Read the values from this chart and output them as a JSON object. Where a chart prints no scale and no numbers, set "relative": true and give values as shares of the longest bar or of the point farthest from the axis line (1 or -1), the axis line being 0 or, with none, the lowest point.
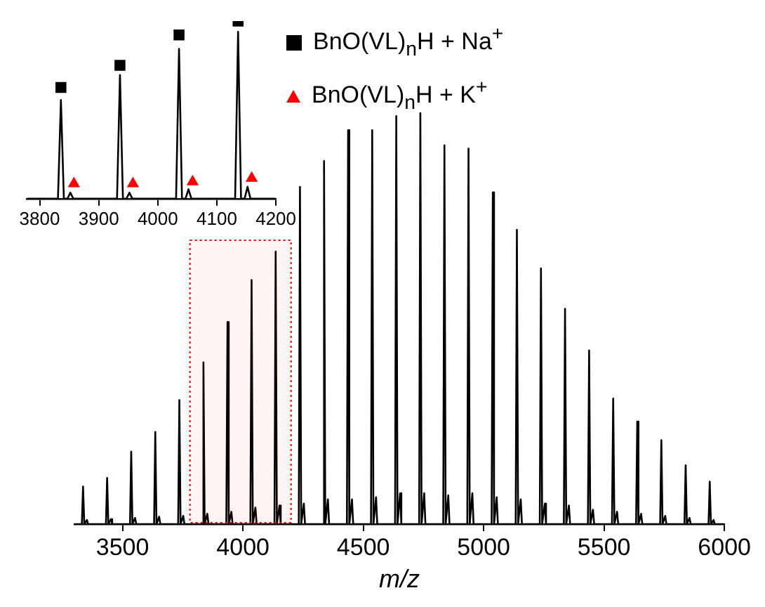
{
  "chart_data": [
    {
      "type": "line",
      "xlabel": "m/z",
      "relative": true,
      "xlim": [
        3300,
        6000
      ],
      "xticks": [
        3500,
        4000,
        4500,
        5000,
        5500,
        6000
      ],
      "marker": "none",
      "grid": false,
      "legend": false,
      "bands": [
        {
          "axis": "x",
          "from": 3780,
          "to": 4200,
          "color": "#ff0000"
        }
      ],
      "series": [
        {
          "color": "#000000",
          "x": [
            3305,
            3331,
            3336,
            3341,
            3352,
            3357,
            3431,
            3436,
            3441,
            3452,
            3457,
            3531,
            3536,
            3541,
            3552,
            3557,
            3631,
            3636,
            3641,
            3652,
            3657,
            3731,
            3736,
            3741,
            3752,
            3757,
            3831,
            3836,
            3841,
            3852,
            3857,
            3931,
            3936,
            3941,
            3952,
            3957,
            4031,
            4036,
            4041,
            4052,
            4057,
            4131,
            4136,
            4141,
            4152,
            4157,
            4232,
            4237,
            4242,
            4253,
            4258,
            4332,
            4337,
            4342,
            4353,
            4358,
            4432,
            4437,
            4442,
            4453,
            4458,
            4532,
            4537,
            4542,
            4553,
            4558,
            4632,
            4637,
            4642,
            4653,
            4658,
            4732,
            4737,
            4742,
            4753,
            4758,
            4832,
            4837,
            4842,
            4853,
            4858,
            4932,
            4937,
            4942,
            4953,
            4958,
            5033,
            5038,
            5043,
            5054,
            5059,
            5133,
            5138,
            5143,
            5154,
            5159,
            5233,
            5238,
            5243,
            5254,
            5259,
            5333,
            5338,
            5343,
            5354,
            5359,
            5433,
            5438,
            5443,
            5454,
            5459,
            5533,
            5538,
            5543,
            5554,
            5559,
            5633,
            5638,
            5643,
            5654,
            5659,
            5733,
            5738,
            5743,
            5754,
            5759,
            5834,
            5839,
            5844,
            5855,
            5860,
            5934,
            5939,
            5944,
            5955,
            5960,
            5995
          ],
          "values": [
            0,
            0,
            0.091,
            0,
            0.01,
            0,
            0,
            0.112,
            0,
            0.012,
            0,
            0,
            0.176,
            0,
            0.015,
            0,
            0,
            0.224,
            0,
            0.018,
            0,
            0,
            0.301,
            0,
            0.02,
            0,
            0,
            0.393,
            0,
            0.025,
            0,
            0,
            0.491,
            0,
            0.03,
            0,
            0,
            0.593,
            0,
            0.04,
            0,
            0,
            0.662,
            0,
            0.045,
            0,
            0,
            0.819,
            0,
            0.05,
            0,
            0,
            0.882,
            0,
            0.06,
            0,
            0,
            0.957,
            0,
            0.06,
            0,
            0,
            0.957,
            0,
            0.065,
            0,
            0,
            0.991,
            0,
            0.075,
            0,
            0,
            1,
            0,
            0.075,
            0,
            0,
            0.92,
            0,
            0.07,
            0,
            0,
            0.912,
            0,
            0.075,
            0,
            0,
            0.806,
            0,
            0.065,
            0,
            0,
            0.715,
            0,
            0.06,
            0,
            0,
            0.621,
            0,
            0.05,
            0,
            0,
            0.523,
            0,
            0.045,
            0,
            0,
            0.422,
            0,
            0.035,
            0,
            0,
            0.305,
            0,
            0.03,
            0,
            0,
            0.249,
            0,
            0.025,
            0,
            0,
            0.204,
            0,
            0.02,
            0,
            0,
            0.143,
            0,
            0.015,
            0,
            0,
            0.103,
            0,
            0.01,
            0,
            0
          ]
        }
      ]
    },
    {
      "type": "line",
      "relative": true,
      "xlim": [
        3778,
        4200
      ],
      "xticks": [
        3800,
        3900,
        4000,
        4100,
        4200
      ],
      "marker": "none",
      "grid": false,
      "legend": "right",
      "series": [
        {
          "color": "#000000",
          "x": [
            3780,
            3831,
            3836,
            3841,
            3847,
            3852,
            3857,
            3931,
            3936,
            3941,
            3947,
            3952,
            3957,
            4031,
            4036,
            4041,
            4047,
            4052,
            4057,
            4131,
            4136,
            4141,
            4147,
            4152,
            4157,
            4198
          ],
          "values": [
            0,
            0,
            0.556,
            0,
            0,
            0.034,
            0,
            0,
            0.696,
            0,
            0,
            0.034,
            0,
            0,
            0.844,
            0,
            0,
            0.053,
            0,
            0,
            0.939,
            0,
            0,
            0.067,
            0,
            0
          ]
        },
        {
          "type": "scatter",
          "name": "BnO(VL)$_{n}$H + Na$^{+}$",
          "color": "#000000",
          "marker": "square",
          "x": [
            3836,
            3936,
            4036,
            4136
          ],
          "values": [
            0.626,
            0.751,
            0.922,
            1
          ]
        },
        {
          "type": "scatter",
          "name": "BnO(VL)$_{n}$H + K$^{+}$",
          "color": "#ff0000",
          "marker": "triangle",
          "x": [
            3858,
            3958,
            4059,
            4159
          ],
          "values": [
            0.084,
            0.084,
            0.095,
            0.115
          ]
        }
      ]
    }
  ]
}
